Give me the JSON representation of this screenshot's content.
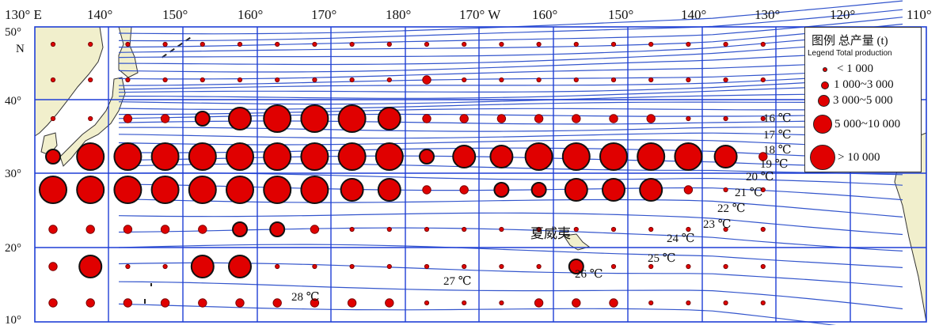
{
  "map": {
    "top_lon_labels": [
      "130° E",
      "140°",
      "150°",
      "160°",
      "170°",
      "180°",
      "170° W",
      "160°",
      "150°",
      "140°",
      "130°",
      "120°",
      "110°"
    ],
    "lat_labels": [
      "50°",
      "40°",
      "30°",
      "20°",
      "10°"
    ],
    "north_label": "N",
    "place_label": "夏威夷",
    "isotherm_labels": [
      "16 ℃",
      "17 ℃",
      "18 ℃",
      "19 ℃",
      "20 ℃",
      "21 ℃",
      "22 ℃",
      "23 ℃",
      "24 ℃",
      "25 ℃",
      "26 ℃",
      "27 ℃",
      "28 ℃"
    ],
    "colors": {
      "land": "#f1efcc",
      "grid": "#1f3fd6",
      "isotherm": "#3355cc",
      "bubble": "#e00000"
    },
    "production_classes": [
      "< 1 000",
      "1 000~3 000",
      "3 000~5 000",
      "5 000~10 000",
      "> 10 000"
    ],
    "production_grid": [
      [
        1,
        1,
        1,
        1,
        1,
        1,
        1,
        1,
        1,
        1,
        1,
        1,
        1,
        1,
        1,
        1,
        1,
        1,
        1,
        1
      ],
      [
        1,
        1,
        1,
        1,
        1,
        1,
        1,
        1,
        1,
        1,
        2,
        1,
        1,
        1,
        1,
        1,
        1,
        1,
        1,
        1
      ],
      [
        1,
        1,
        2,
        2,
        3,
        4,
        5,
        5,
        5,
        4,
        2,
        2,
        2,
        2,
        2,
        2,
        2,
        1,
        1,
        1
      ],
      [
        3,
        5,
        5,
        5,
        5,
        5,
        5,
        5,
        5,
        5,
        3,
        4,
        4,
        5,
        5,
        5,
        5,
        5,
        4,
        2
      ],
      [
        5,
        5,
        5,
        5,
        5,
        5,
        5,
        5,
        4,
        4,
        2,
        2,
        3,
        3,
        4,
        4,
        4,
        2,
        1,
        1
      ],
      [
        2,
        2,
        2,
        2,
        2,
        3,
        3,
        2,
        1,
        1,
        1,
        1,
        1,
        1,
        1,
        1,
        1,
        1,
        1,
        1
      ],
      [
        2,
        4,
        1,
        1,
        4,
        4,
        1,
        1,
        1,
        1,
        1,
        1,
        1,
        1,
        3,
        1,
        1,
        1,
        1,
        1
      ],
      [
        2,
        2,
        2,
        2,
        2,
        2,
        2,
        2,
        2,
        2,
        1,
        1,
        1,
        2,
        2,
        2,
        1,
        1,
        1,
        1
      ]
    ]
  },
  "legend": {
    "title": "图例  总产量 (t)",
    "subtitle": "Legend Total production",
    "items": [
      "< 1 000",
      "1 000~3 000",
      "3 000~5 000",
      "5 000~10 000",
      "> 10 000"
    ]
  }
}
